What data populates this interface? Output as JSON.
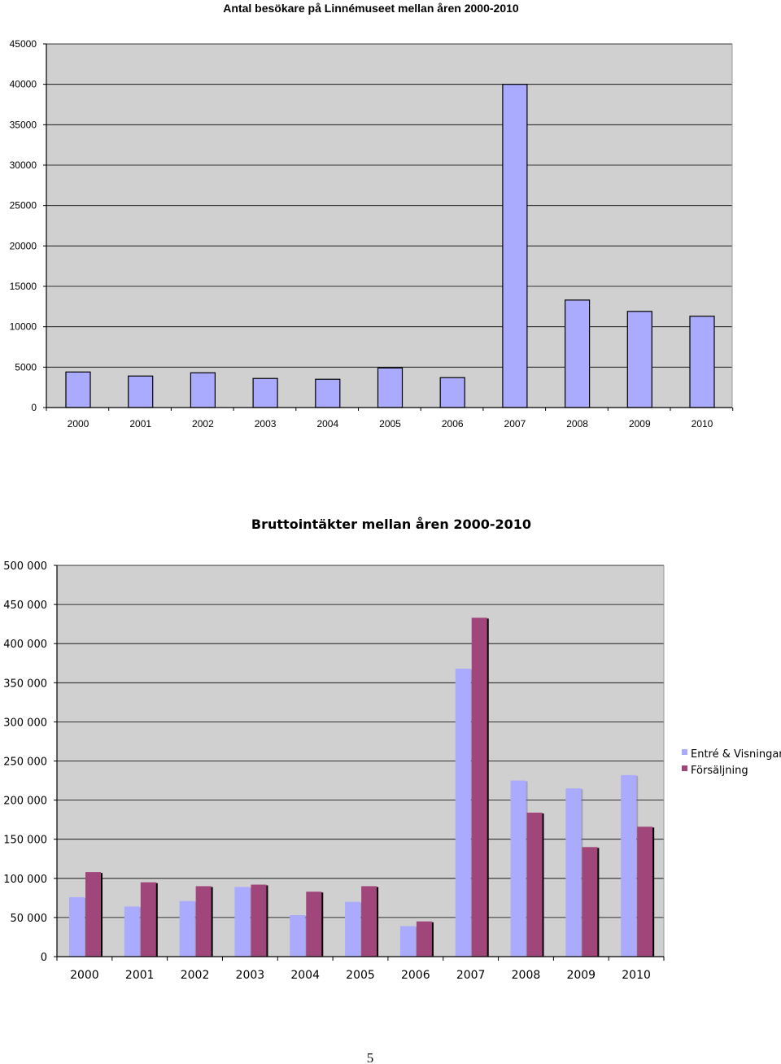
{
  "chart_data": [
    {
      "type": "bar",
      "title": "Antal besökare på Linnémuseet mellan åren 2000-2010",
      "categories": [
        "2000",
        "2001",
        "2002",
        "2003",
        "2004",
        "2005",
        "2006",
        "2007",
        "2008",
        "2009",
        "2010"
      ],
      "values": [
        4400,
        3900,
        4300,
        3600,
        3500,
        4900,
        3700,
        40000,
        13300,
        11900,
        11300
      ],
      "ylim": [
        0,
        45000
      ],
      "yticks": [
        "0",
        "5000",
        "10000",
        "15000",
        "20000",
        "25000",
        "30000",
        "35000",
        "40000",
        "45000"
      ],
      "grid": true,
      "colors": {
        "bar": "#aaaaff",
        "plot_bg": "#d0d0d0",
        "grid": "#000000"
      }
    },
    {
      "type": "bar",
      "title": "Bruttointäkter mellan åren 2000-2010",
      "categories": [
        "2000",
        "2001",
        "2002",
        "2003",
        "2004",
        "2005",
        "2006",
        "2007",
        "2008",
        "2009",
        "2010"
      ],
      "series": [
        {
          "name": "Entré & Visningar",
          "values": [
            76000,
            64000,
            71000,
            89000,
            53000,
            70000,
            39000,
            368000,
            225000,
            215000,
            232000
          ]
        },
        {
          "name": "Försäljning",
          "values": [
            108000,
            95000,
            90000,
            92000,
            83000,
            90000,
            45000,
            433000,
            184000,
            140000,
            166000
          ]
        }
      ],
      "ylim": [
        0,
        500000
      ],
      "yticks": [
        "0",
        "50 000",
        "100 000",
        "150 000",
        "200 000",
        "250 000",
        "300 000",
        "350 000",
        "400 000",
        "450 000",
        "500 000"
      ],
      "grid": true,
      "legend": "right",
      "colors": {
        "series1": "#aaaaff",
        "series2": "#a0467a",
        "plot_bg": "#d0d0d0",
        "grid": "#000000"
      }
    }
  ],
  "page_number": "5"
}
